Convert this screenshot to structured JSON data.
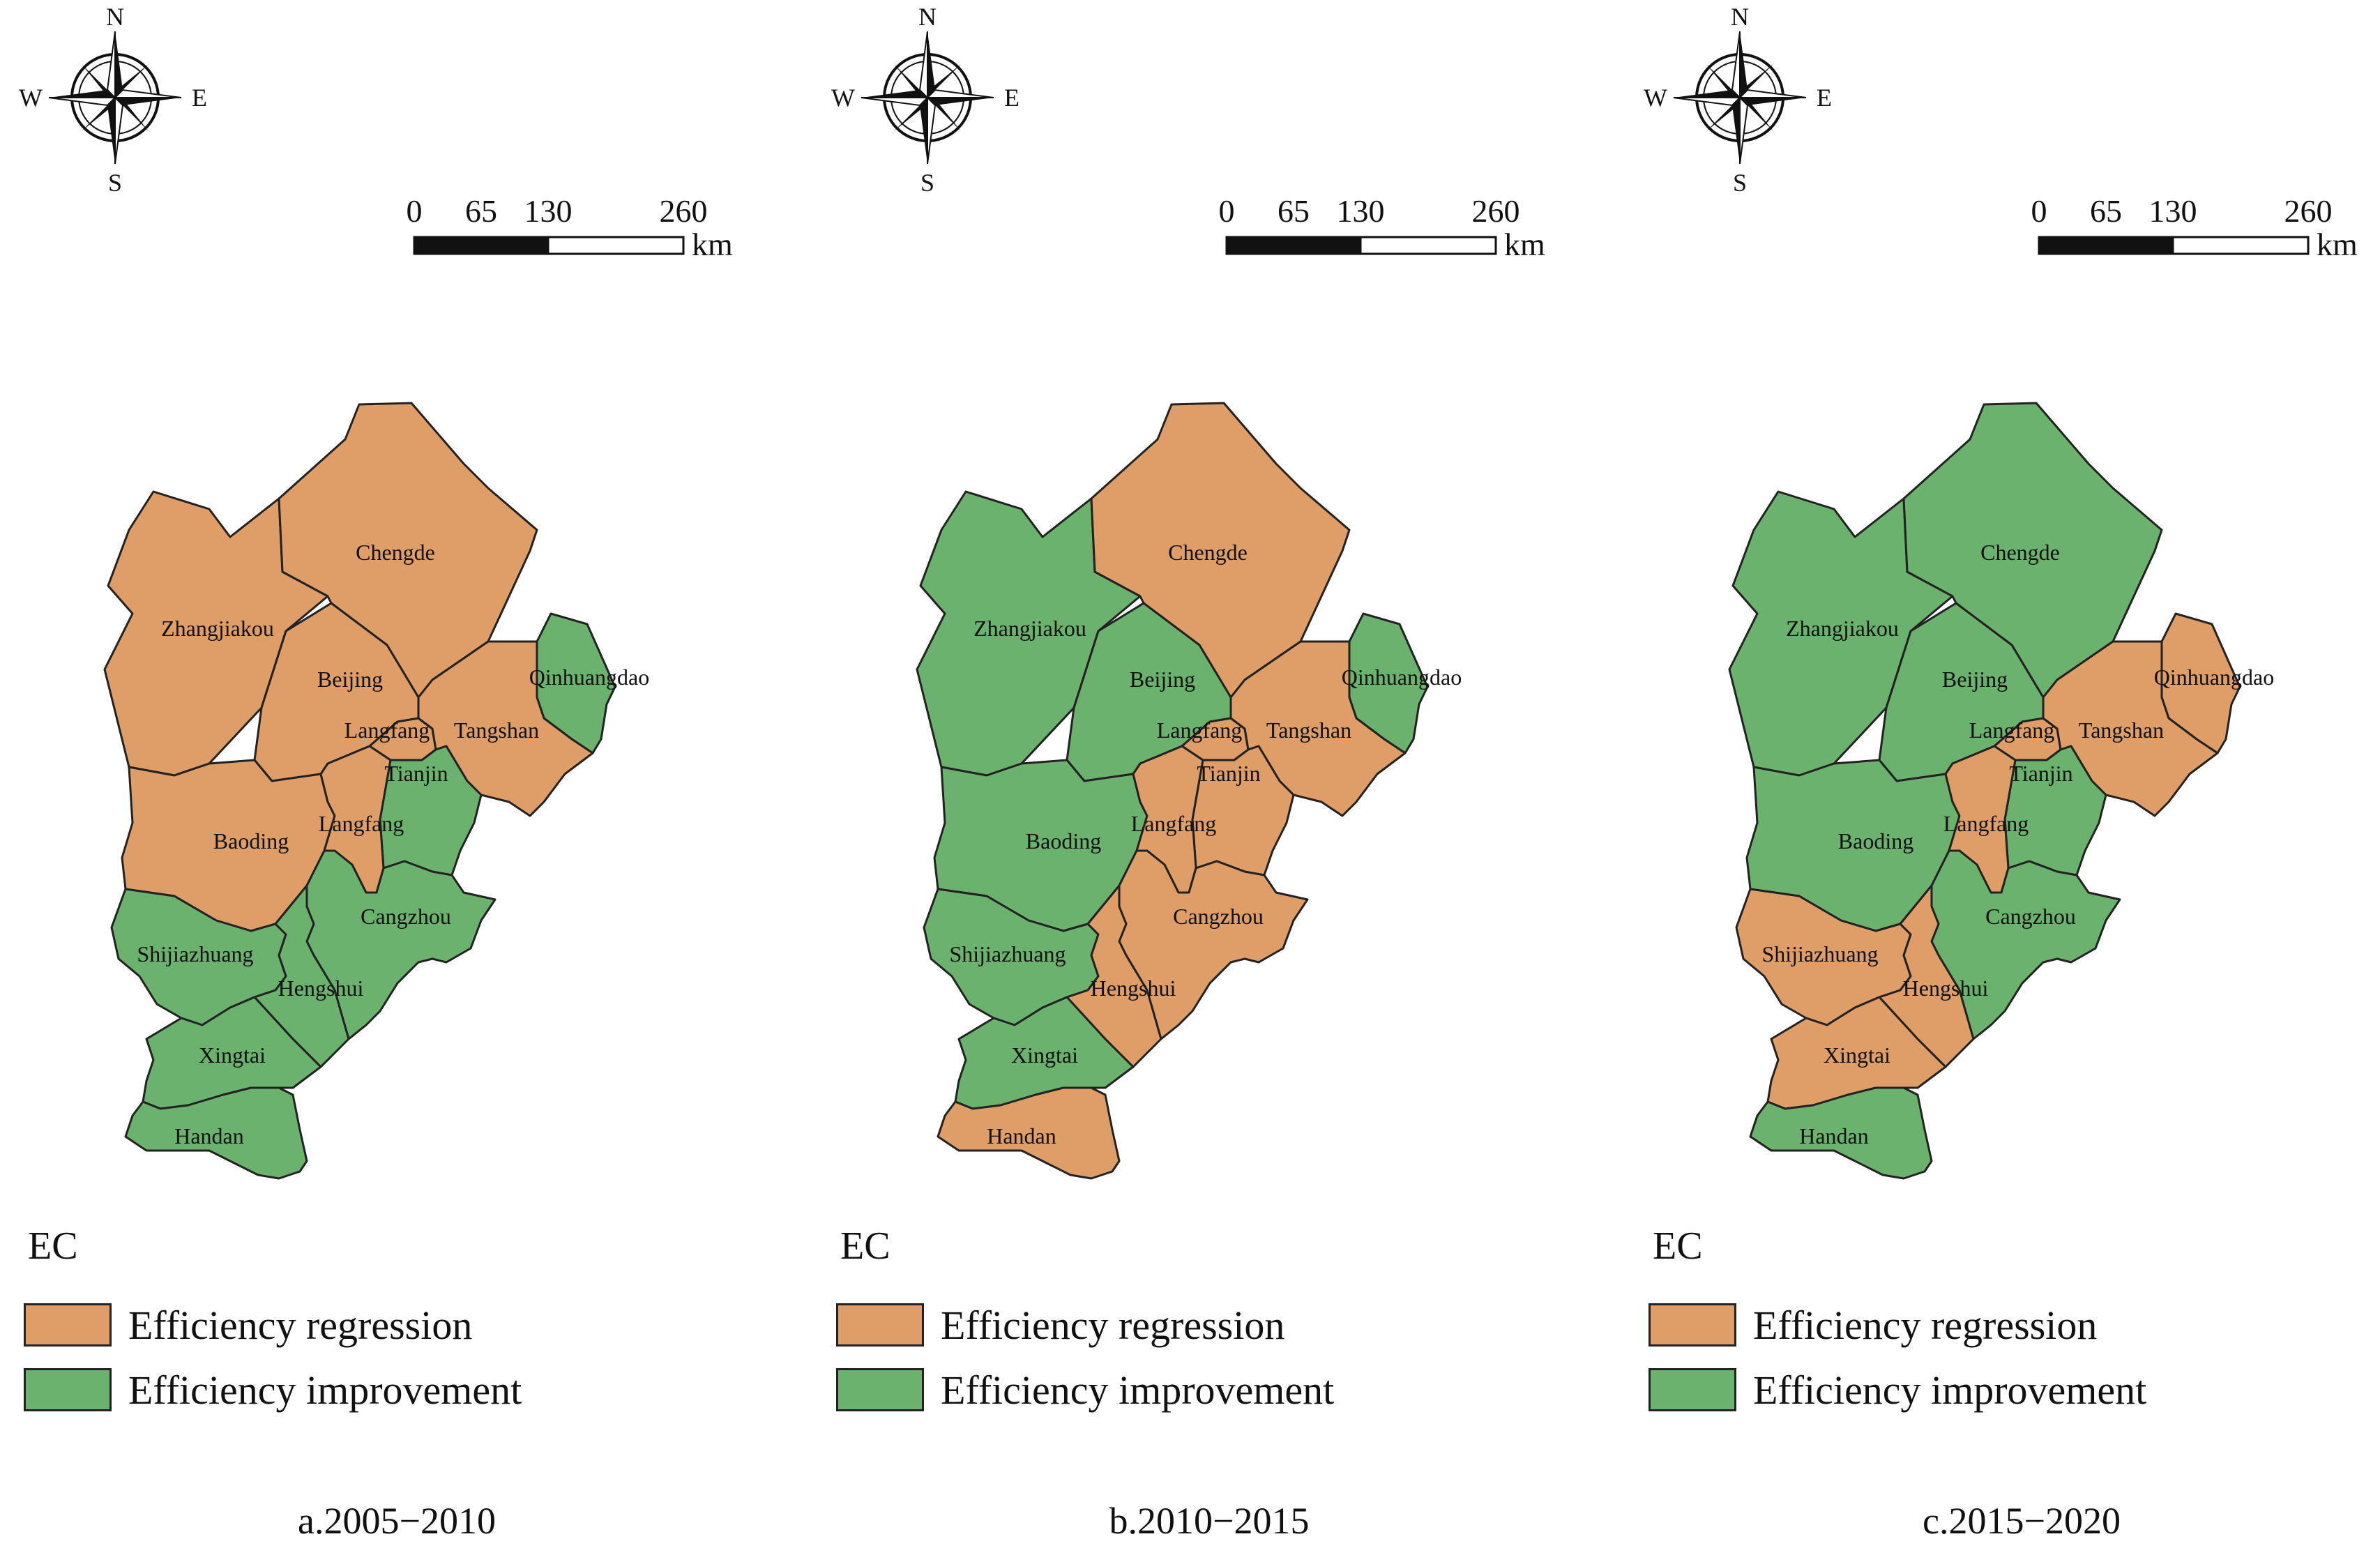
{
  "compass": {
    "north": "N",
    "south": "S",
    "east": "E",
    "west": "W"
  },
  "scale_bar": {
    "ticks": [
      "0",
      "65",
      "130",
      "260"
    ],
    "unit": "km"
  },
  "colors": {
    "regression": "#DF9E68",
    "improvement": "#6CB26F",
    "outline": "#222222"
  },
  "legend": {
    "title": "EC",
    "regression_label": "Efficiency regression",
    "improvement_label": "Efficiency improvement"
  },
  "region_names": {
    "zhangjiakou": "Zhangjiakou",
    "chengde": "Chengde",
    "qinhuangdao": "Qinhuangdao",
    "beijing": "Beijing",
    "langfang_north": "Langfang",
    "tangshan": "Tangshan",
    "tianjin": "Tianjin",
    "baoding": "Baoding",
    "langfang_south": "Langfang",
    "cangzhou": "Cangzhou",
    "shijiazhuang": "Shijiazhuang",
    "hengshui": "Hengshui",
    "xingtai": "Xingtai",
    "handan": "Handan"
  },
  "panels": [
    {
      "caption": "a.2005−2010",
      "status": {
        "zhangjiakou": "regression",
        "chengde": "regression",
        "qinhuangdao": "improvement",
        "beijing": "regression",
        "langfang_north": "regression",
        "tangshan": "regression",
        "tianjin": "improvement",
        "baoding": "regression",
        "langfang_south": "regression",
        "cangzhou": "improvement",
        "shijiazhuang": "improvement",
        "hengshui": "improvement",
        "xingtai": "improvement",
        "handan": "improvement"
      }
    },
    {
      "caption": "b.2010−2015",
      "status": {
        "zhangjiakou": "improvement",
        "chengde": "regression",
        "qinhuangdao": "improvement",
        "beijing": "improvement",
        "langfang_north": "regression",
        "tangshan": "regression",
        "tianjin": "regression",
        "baoding": "improvement",
        "langfang_south": "regression",
        "cangzhou": "regression",
        "shijiazhuang": "improvement",
        "hengshui": "regression",
        "xingtai": "improvement",
        "handan": "regression"
      }
    },
    {
      "caption": "c.2015−2020",
      "status": {
        "zhangjiakou": "improvement",
        "chengde": "improvement",
        "qinhuangdao": "regression",
        "beijing": "improvement",
        "langfang_north": "regression",
        "tangshan": "regression",
        "tianjin": "improvement",
        "baoding": "improvement",
        "langfang_south": "regression",
        "cangzhou": "improvement",
        "shijiazhuang": "regression",
        "hengshui": "regression",
        "xingtai": "regression",
        "handan": "improvement"
      }
    }
  ]
}
